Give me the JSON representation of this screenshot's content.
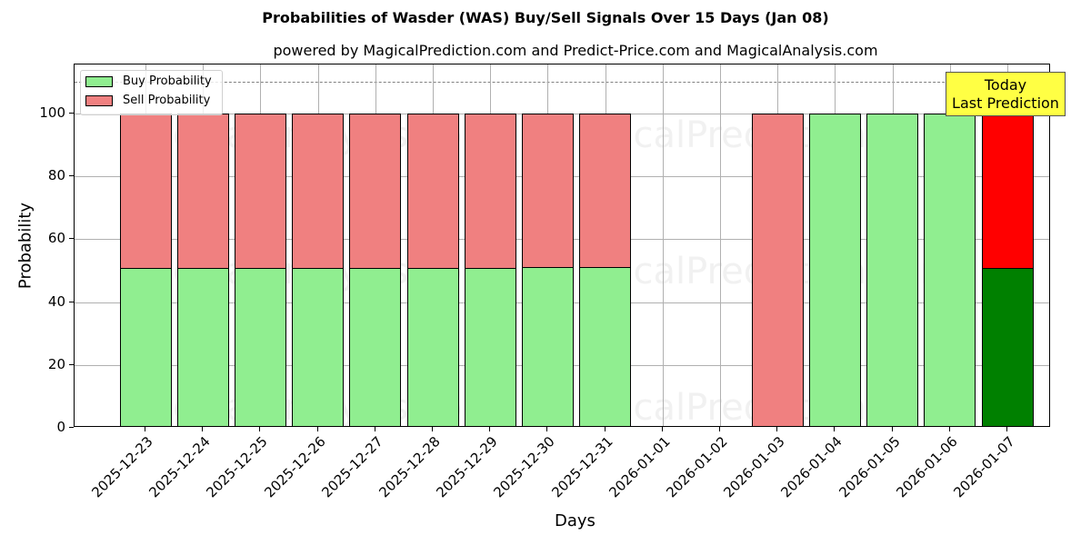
{
  "header": {
    "title": "Probabilities of Wasder (WAS) Buy/Sell Signals Over 15 Days (Jan 08)",
    "subtitle": "powered by MagicalPrediction.com and Predict-Price.com and MagicalAnalysis.com"
  },
  "axes": {
    "xlabel": "Days",
    "ylabel": "Probability",
    "yticks": [
      "0",
      "20",
      "40",
      "60",
      "80",
      "100"
    ]
  },
  "legend": {
    "buy_label": "Buy Probability",
    "sell_label": "Sell Probability"
  },
  "annotation": {
    "line1": "Today",
    "line2": "Last Prediction"
  },
  "watermarks": [
    "MagicalAnalysis.com",
    "MagicalPrediction.com"
  ],
  "colors": {
    "buy": "#90ee90",
    "sell": "#f08080",
    "today_buy": "#008000",
    "today_sell": "#ff0000",
    "annotation_bg": "#ffff44"
  },
  "chart_data": {
    "type": "bar",
    "stacked": true,
    "title": "Probabilities of Wasder (WAS) Buy/Sell Signals Over 15 Days (Jan 08)",
    "subtitle": "powered by MagicalPrediction.com and Predict-Price.com and MagicalAnalysis.com",
    "xlabel": "Days",
    "ylabel": "Probability",
    "ylim": [
      0,
      115
    ],
    "yticks": [
      0,
      20,
      40,
      60,
      80,
      100
    ],
    "grid": true,
    "legend_position": "upper left",
    "reference_line": {
      "y": 110,
      "style": "dashed",
      "color": "#808080"
    },
    "categories": [
      "2025-12-23",
      "2025-12-24",
      "2025-12-25",
      "2025-12-26",
      "2025-12-27",
      "2025-12-28",
      "2025-12-29",
      "2025-12-30",
      "2025-12-31",
      "2026-01-01",
      "2026-01-02",
      "2026-01-03",
      "2026-01-04",
      "2026-01-05",
      "2026-01-06",
      "2026-01-07"
    ],
    "series": [
      {
        "name": "Buy Probability",
        "values": [
          50.9,
          50.9,
          50.9,
          50.9,
          50.9,
          50.9,
          50.9,
          51.2,
          51.2,
          null,
          null,
          0,
          100,
          100,
          100,
          50.9
        ]
      },
      {
        "name": "Sell Probability",
        "values": [
          49.1,
          49.1,
          49.1,
          49.1,
          49.1,
          49.1,
          49.1,
          48.8,
          48.8,
          null,
          null,
          100,
          0,
          0,
          0,
          49.1
        ]
      }
    ],
    "annotations": [
      {
        "text": "Today\nLast Prediction",
        "x": "2026-01-07",
        "y": 110
      }
    ]
  }
}
